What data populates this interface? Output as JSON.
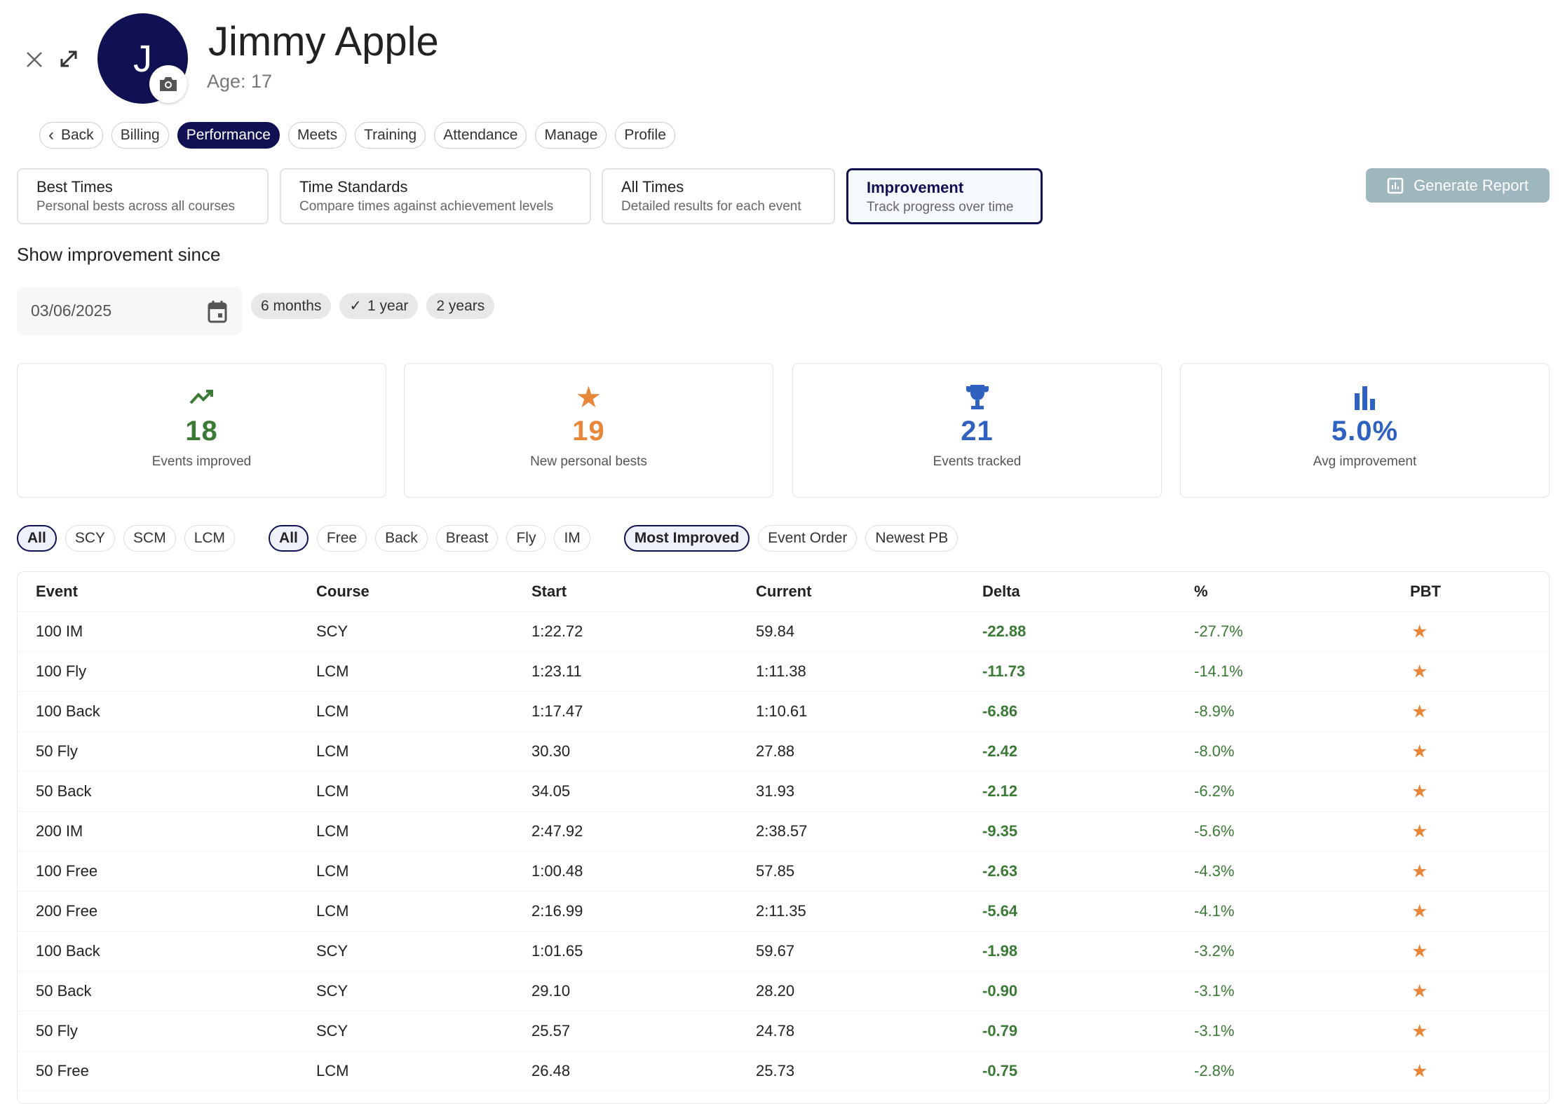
{
  "header": {
    "name": "Jimmy Apple",
    "age_label": "Age: 17",
    "avatar_initial": "J"
  },
  "nav": [
    "Back",
    "Billing",
    "Performance",
    "Meets",
    "Training",
    "Attendance",
    "Manage",
    "Profile"
  ],
  "nav_active": "Performance",
  "views": [
    {
      "title": "Best Times",
      "subtitle": "Personal bests across all courses"
    },
    {
      "title": "Time Standards",
      "subtitle": "Compare times against achievement levels"
    },
    {
      "title": "All Times",
      "subtitle": "Detailed results for each event"
    },
    {
      "title": "Improvement",
      "subtitle": "Track progress over time"
    }
  ],
  "active_view": "Improvement",
  "generate_report": "Generate Report",
  "since": {
    "label": "Show improvement since",
    "date": "03/06/2025",
    "ranges": [
      "6 months",
      "1 year",
      "2 years"
    ],
    "selected": "1 year"
  },
  "stats": [
    {
      "value": "18",
      "label": "Events improved",
      "icon": "trending-up-icon",
      "color": "#3a7a35"
    },
    {
      "value": "19",
      "label": "New personal bests",
      "icon": "star-icon",
      "color": "#e8863a"
    },
    {
      "value": "21",
      "label": "Events tracked",
      "icon": "trophy-icon",
      "color": "#2f62c0"
    },
    {
      "value": "5.0%",
      "label": "Avg improvement",
      "icon": "bar-chart-icon",
      "color": "#2f62c0"
    }
  ],
  "filters": {
    "course": [
      "All",
      "SCY",
      "SCM",
      "LCM"
    ],
    "stroke": [
      "All",
      "Free",
      "Back",
      "Breast",
      "Fly",
      "IM"
    ],
    "sort": [
      "Most Improved",
      "Event Order",
      "Newest PB"
    ],
    "selected": {
      "course": "All",
      "stroke": "All",
      "sort": "Most Improved"
    }
  },
  "table": {
    "columns": [
      "Event",
      "Course",
      "Start",
      "Current",
      "Delta",
      "%",
      "PBT"
    ],
    "rows": [
      [
        "100 IM",
        "SCY",
        "1:22.72",
        "59.84",
        "-22.88",
        "-27.7%"
      ],
      [
        "100 Fly",
        "LCM",
        "1:23.11",
        "1:11.38",
        "-11.73",
        "-14.1%"
      ],
      [
        "100 Back",
        "LCM",
        "1:17.47",
        "1:10.61",
        "-6.86",
        "-8.9%"
      ],
      [
        "50 Fly",
        "LCM",
        "30.30",
        "27.88",
        "-2.42",
        "-8.0%"
      ],
      [
        "50 Back",
        "LCM",
        "34.05",
        "31.93",
        "-2.12",
        "-6.2%"
      ],
      [
        "200 IM",
        "LCM",
        "2:47.92",
        "2:38.57",
        "-9.35",
        "-5.6%"
      ],
      [
        "100 Free",
        "LCM",
        "1:00.48",
        "57.85",
        "-2.63",
        "-4.3%"
      ],
      [
        "200 Free",
        "LCM",
        "2:16.99",
        "2:11.35",
        "-5.64",
        "-4.1%"
      ],
      [
        "100 Back",
        "SCY",
        "1:01.65",
        "59.67",
        "-1.98",
        "-3.2%"
      ],
      [
        "50 Back",
        "SCY",
        "29.10",
        "28.20",
        "-0.90",
        "-3.1%"
      ],
      [
        "50 Fly",
        "SCY",
        "25.57",
        "24.78",
        "-0.79",
        "-3.1%"
      ],
      [
        "50 Free",
        "LCM",
        "26.48",
        "25.73",
        "-0.75",
        "-2.8%"
      ]
    ],
    "pbt_icon": "star-icon"
  },
  "colors": {
    "primary": "#0f1152",
    "improve": "#3a7a35",
    "pb": "#e8863a",
    "info": "#2f62c0"
  }
}
